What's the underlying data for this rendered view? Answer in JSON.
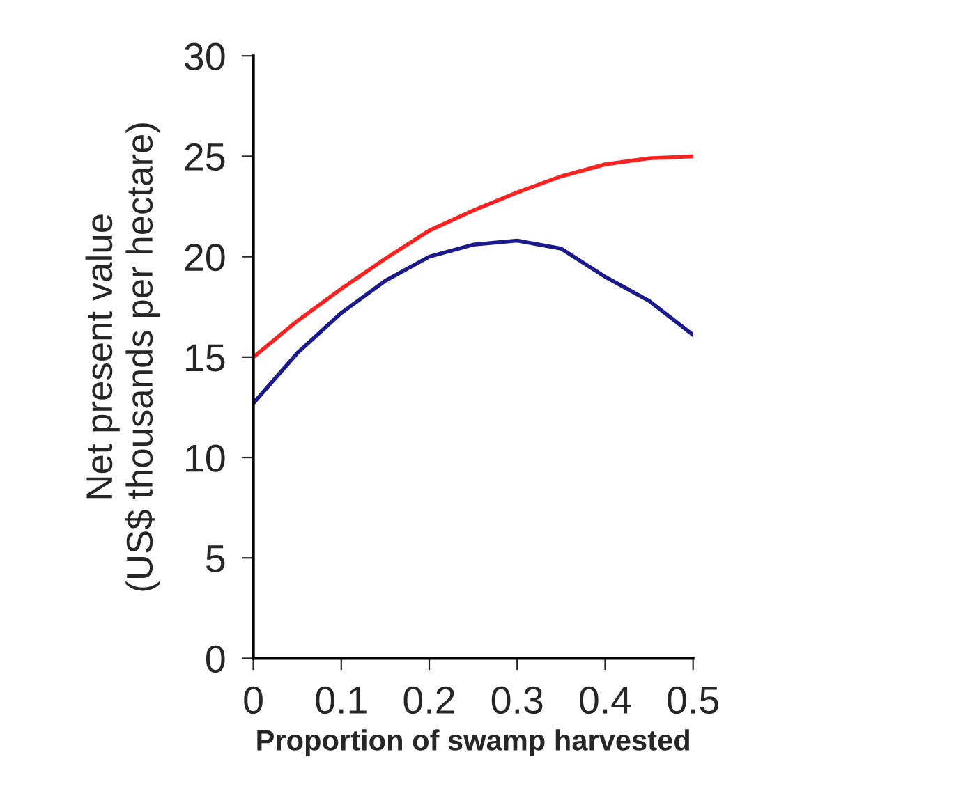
{
  "chart_data": {
    "type": "line",
    "xlabel": "Proportion of swamp harvested",
    "ylabel": "Net present value\n(US$ thousands per hectare)",
    "x": [
      0,
      0.05,
      0.1,
      0.15,
      0.2,
      0.25,
      0.3,
      0.35,
      0.4,
      0.45,
      0.5
    ],
    "series": [
      {
        "color": "#ff2020",
        "values": [
          15.0,
          16.8,
          18.4,
          19.9,
          21.3,
          22.3,
          23.2,
          24.0,
          24.6,
          24.9,
          25.0
        ]
      },
      {
        "color": "#1a1a8c",
        "values": [
          12.7,
          15.2,
          17.2,
          18.8,
          20.0,
          20.6,
          20.8,
          20.4,
          19.0,
          17.8,
          16.1
        ]
      }
    ],
    "xlim": [
      0,
      0.5
    ],
    "ylim": [
      0,
      30
    ],
    "xticks": [
      0,
      0.1,
      0.2,
      0.3,
      0.4,
      0.5
    ],
    "yticks": [
      0,
      5,
      10,
      15,
      20,
      25,
      30
    ],
    "grid": false,
    "legend": false,
    "marker": "none",
    "line_style": "solid"
  }
}
